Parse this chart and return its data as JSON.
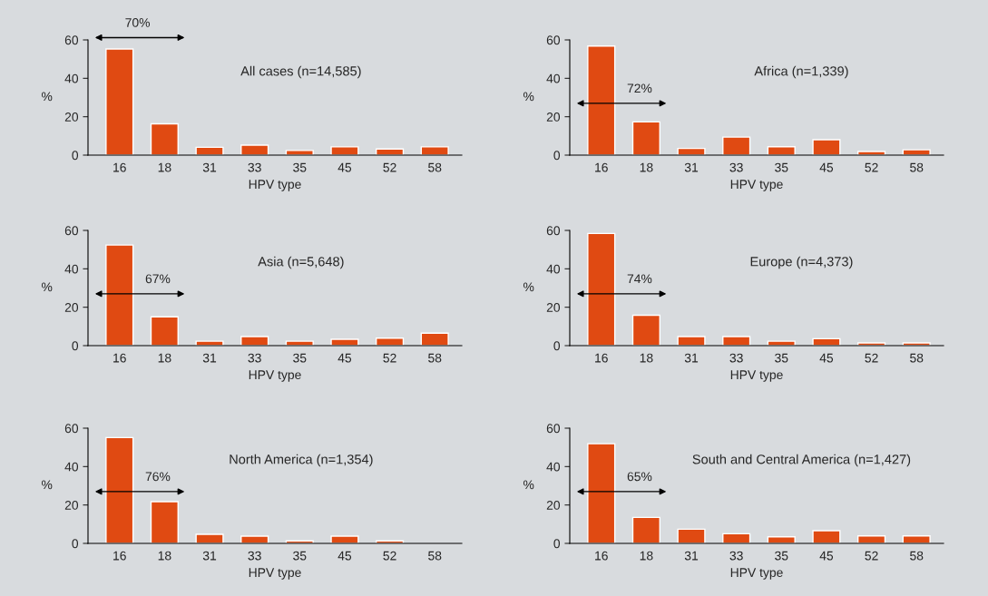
{
  "chart_data": [
    {
      "type": "bar",
      "title": "All cases (n=14,585)",
      "xlabel": "HPV type",
      "ylabel": "%",
      "categories": [
        "16",
        "18",
        "31",
        "33",
        "35",
        "45",
        "52",
        "58"
      ],
      "values": [
        55.3,
        16.3,
        4.1,
        5.2,
        2.4,
        4.3,
        3.2,
        4.3
      ],
      "color": "#e04a12",
      "ylim": [
        0,
        60
      ],
      "yticks": [
        0,
        20,
        40,
        60
      ],
      "annotations": [
        "70%"
      ]
    },
    {
      "type": "bar",
      "title": "Africa (n=1,339)",
      "xlabel": "HPV type",
      "ylabel": "%",
      "categories": [
        "16",
        "18",
        "31",
        "33",
        "35",
        "45",
        "52",
        "58"
      ],
      "values": [
        56.8,
        17.3,
        3.5,
        9.4,
        4.4,
        8.0,
        1.9,
        2.8
      ],
      "color": "#e04a12",
      "ylim": [
        0,
        60
      ],
      "yticks": [
        0,
        20,
        40,
        60
      ],
      "annotations": [
        "72%"
      ]
    },
    {
      "type": "bar",
      "title": "Asia (n=5,648)",
      "xlabel": "HPV type",
      "ylabel": "%",
      "categories": [
        "16",
        "18",
        "31",
        "33",
        "35",
        "45",
        "52",
        "58"
      ],
      "values": [
        52.4,
        15.0,
        2.3,
        4.7,
        2.3,
        3.3,
        3.9,
        6.5
      ],
      "color": "#e04a12",
      "ylim": [
        0,
        60
      ],
      "yticks": [
        0,
        20,
        40,
        60
      ],
      "annotations": [
        "67%"
      ]
    },
    {
      "type": "bar",
      "title": "Europe (n=4,373)",
      "xlabel": "HPV type",
      "ylabel": "%",
      "categories": [
        "16",
        "18",
        "31",
        "33",
        "35",
        "45",
        "52",
        "58"
      ],
      "values": [
        58.4,
        15.8,
        4.7,
        4.7,
        2.3,
        3.6,
        1.4,
        1.4
      ],
      "color": "#e04a12",
      "ylim": [
        0,
        60
      ],
      "yticks": [
        0,
        20,
        40,
        60
      ],
      "annotations": [
        "74%"
      ]
    },
    {
      "type": "bar",
      "title": "North America (n=1,354)",
      "xlabel": "HPV type",
      "ylabel": "%",
      "categories": [
        "16",
        "18",
        "31",
        "33",
        "35",
        "45",
        "52",
        "58"
      ],
      "values": [
        55.1,
        21.7,
        4.7,
        3.8,
        1.3,
        3.8,
        1.3,
        null
      ],
      "color": "#e04a12",
      "ylim": [
        0,
        60
      ],
      "yticks": [
        0,
        20,
        40,
        60
      ],
      "annotations": [
        "76%"
      ]
    },
    {
      "type": "bar",
      "title": "South and Central America (n=1,427)",
      "xlabel": "HPV type",
      "ylabel": "%",
      "categories": [
        "16",
        "18",
        "31",
        "33",
        "35",
        "45",
        "52",
        "58"
      ],
      "values": [
        51.9,
        13.5,
        7.4,
        5.0,
        3.4,
        6.6,
        3.9,
        3.9
      ],
      "color": "#e04a12",
      "ylim": [
        0,
        60
      ],
      "yticks": [
        0,
        20,
        40,
        60
      ],
      "annotations": [
        "65%"
      ]
    }
  ]
}
